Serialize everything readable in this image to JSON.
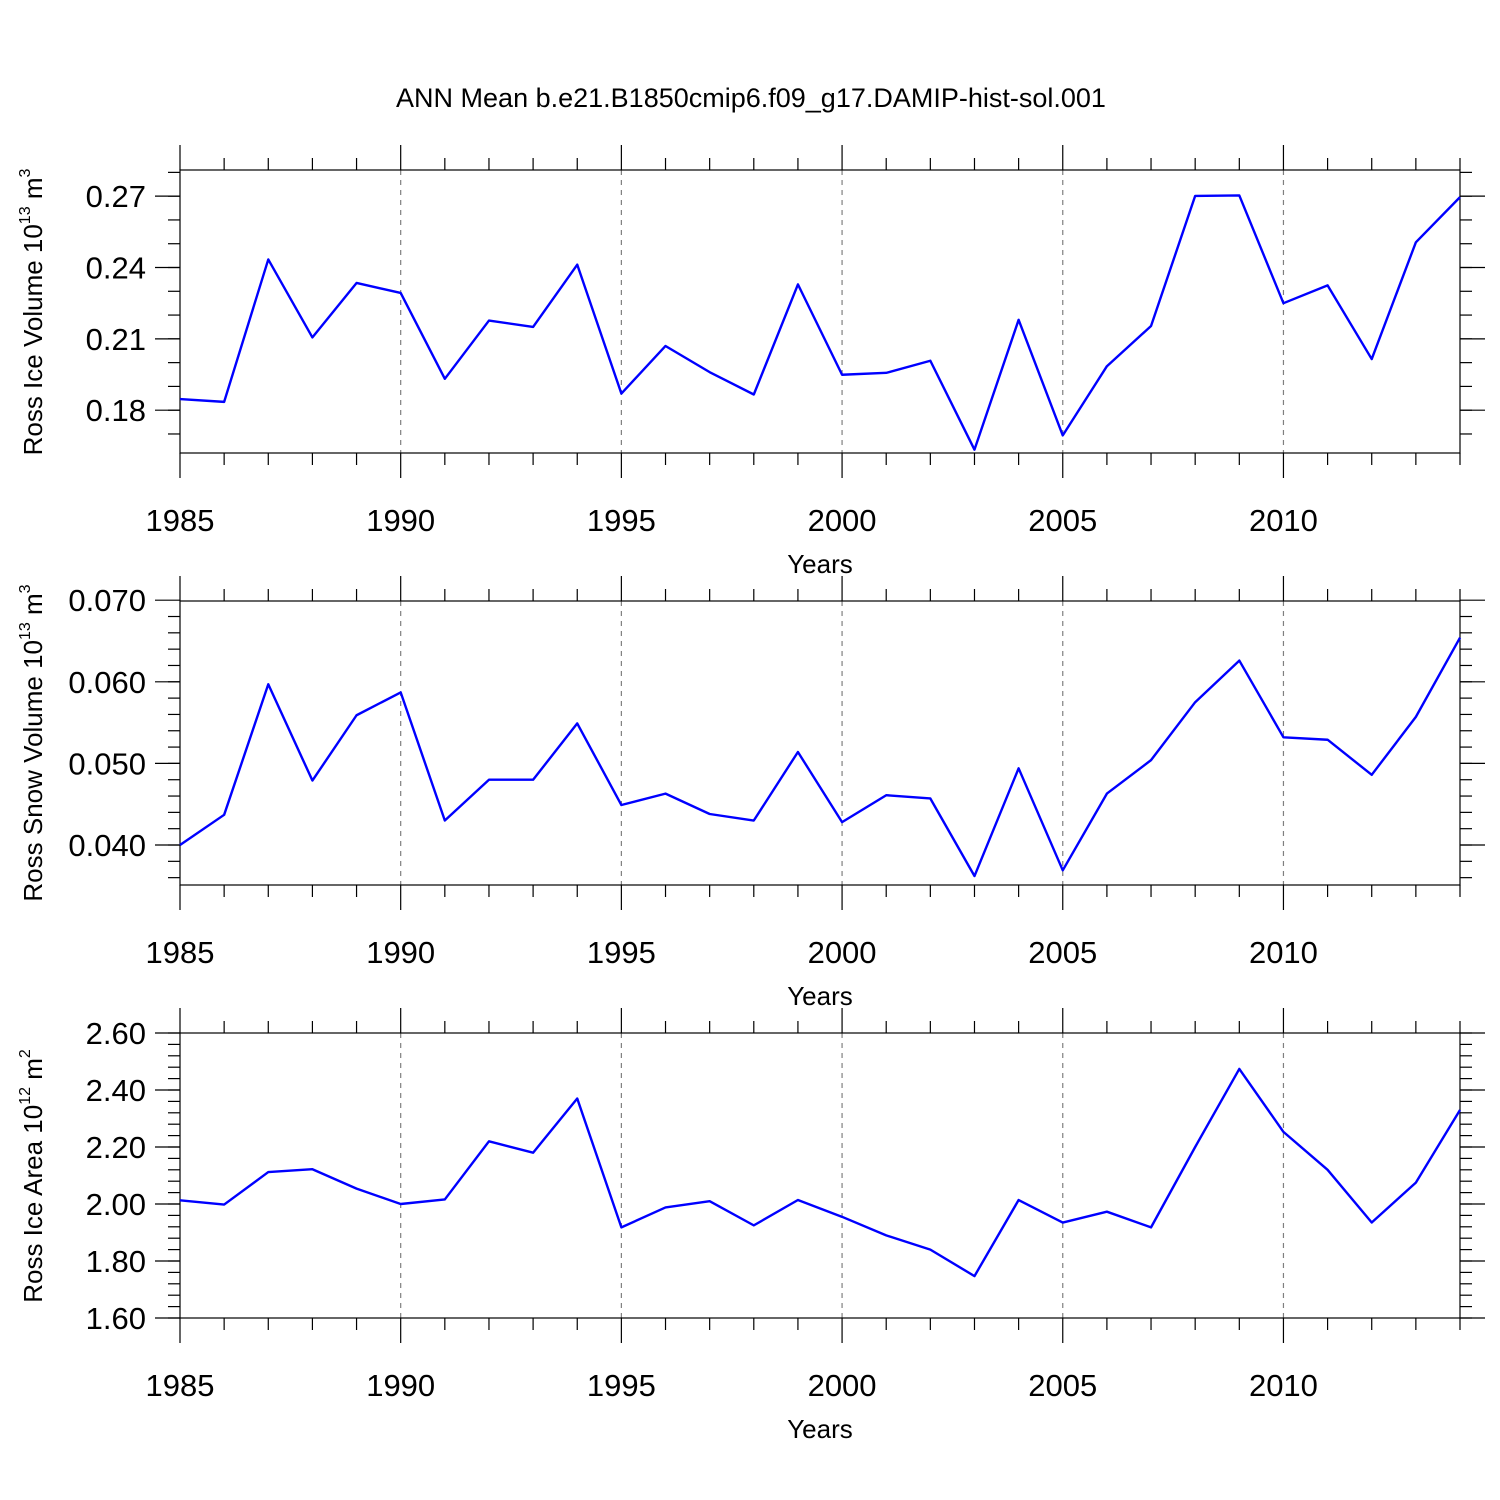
{
  "title": "ANN Mean b.e21.B1850cmip6.f09_g17.DAMIP-hist-sol.001",
  "colors": {
    "line": "#0000ff",
    "axis": "#000000",
    "grid": "#7f7f7f"
  },
  "chart_data": [
    {
      "type": "line",
      "ylabel": "Ross Ice Volume 10",
      "ylabel_exp": "13",
      "ylabel_unit": " m",
      "ylabel_unit_exp": "3",
      "xlabel": "Years",
      "xlim": [
        1985,
        2014
      ],
      "ylim": [
        0.162,
        0.281
      ],
      "yticks": [
        0.18,
        0.21,
        0.24,
        0.27
      ],
      "ytick_labels": [
        "0.18",
        "0.21",
        "0.24",
        "0.27"
      ],
      "yminor_step": 0.01,
      "xticks": [
        1985,
        1990,
        1995,
        2000,
        2005,
        2010
      ],
      "xtick_labels": [
        "1985",
        "1990",
        "1995",
        "2000",
        "2005",
        "2010"
      ],
      "grid_x": [
        1990,
        1995,
        2000,
        2005,
        2010
      ],
      "x": [
        1985,
        1986,
        1987,
        1988,
        1989,
        1990,
        1991,
        1992,
        1993,
        1994,
        1995,
        1996,
        1997,
        1998,
        1999,
        2000,
        2001,
        2002,
        2003,
        2004,
        2005,
        2006,
        2007,
        2008,
        2009,
        2010,
        2011,
        2012,
        2013,
        2014
      ],
      "series": [
        {
          "values": [
            0.1847,
            0.1835,
            0.2434,
            0.2106,
            0.2335,
            0.2293,
            0.1932,
            0.2177,
            0.215,
            0.2412,
            0.187,
            0.207,
            0.196,
            0.1866,
            0.2329,
            0.1949,
            0.1957,
            0.2008,
            0.1634,
            0.218,
            0.1694,
            0.1985,
            0.2154,
            0.2701,
            0.2703,
            0.225,
            0.2325,
            0.2015,
            0.2506,
            0.2696
          ]
        }
      ]
    },
    {
      "type": "line",
      "ylabel": "Ross Snow Volume 10",
      "ylabel_exp": "13",
      "ylabel_unit": " m",
      "ylabel_unit_exp": "3",
      "xlabel": "Years",
      "xlim": [
        1985,
        2014
      ],
      "ylim": [
        0.0351,
        0.0699
      ],
      "yticks": [
        0.04,
        0.05,
        0.06,
        0.07
      ],
      "ytick_labels": [
        "0.040",
        "0.050",
        "0.060",
        "0.070"
      ],
      "yminor_step": 0.002,
      "xticks": [
        1985,
        1990,
        1995,
        2000,
        2005,
        2010
      ],
      "xtick_labels": [
        "1985",
        "1990",
        "1995",
        "2000",
        "2005",
        "2010"
      ],
      "grid_x": [
        1990,
        1995,
        2000,
        2005,
        2010
      ],
      "x": [
        1985,
        1986,
        1987,
        1988,
        1989,
        1990,
        1991,
        1992,
        1993,
        1994,
        1995,
        1996,
        1997,
        1998,
        1999,
        2000,
        2001,
        2002,
        2003,
        2004,
        2005,
        2006,
        2007,
        2008,
        2009,
        2010,
        2011,
        2012,
        2013,
        2014
      ],
      "series": [
        {
          "values": [
            0.04,
            0.0437,
            0.0597,
            0.0479,
            0.0559,
            0.0587,
            0.043,
            0.048,
            0.048,
            0.0549,
            0.0449,
            0.0463,
            0.0438,
            0.043,
            0.0514,
            0.0428,
            0.0461,
            0.0457,
            0.0362,
            0.0494,
            0.0369,
            0.0463,
            0.0504,
            0.0575,
            0.0626,
            0.0532,
            0.0529,
            0.0486,
            0.0557,
            0.0654
          ]
        }
      ]
    },
    {
      "type": "line",
      "ylabel": "Ross Ice Area 10",
      "ylabel_exp": "12",
      "ylabel_unit": " m",
      "ylabel_unit_exp": "2",
      "xlabel": "Years",
      "xlim": [
        1985,
        2014
      ],
      "ylim": [
        1.6,
        2.6
      ],
      "yticks": [
        1.6,
        1.8,
        2.0,
        2.2,
        2.4,
        2.6
      ],
      "ytick_labels": [
        "1.60",
        "1.80",
        "2.00",
        "2.20",
        "2.40",
        "2.60"
      ],
      "yminor_step": 0.04,
      "xticks": [
        1985,
        1990,
        1995,
        2000,
        2005,
        2010
      ],
      "xtick_labels": [
        "1985",
        "1990",
        "1995",
        "2000",
        "2005",
        "2010"
      ],
      "grid_x": [
        1990,
        1995,
        2000,
        2005,
        2010
      ],
      "x": [
        1985,
        1986,
        1987,
        1988,
        1989,
        1990,
        1991,
        1992,
        1993,
        1994,
        1995,
        1996,
        1997,
        1998,
        1999,
        2000,
        2001,
        2002,
        2003,
        2004,
        2005,
        2006,
        2007,
        2008,
        2009,
        2010,
        2011,
        2012,
        2013,
        2014
      ],
      "series": [
        {
          "values": [
            2.013,
            1.998,
            2.112,
            2.122,
            2.054,
            2.0,
            2.016,
            2.22,
            2.18,
            2.37,
            1.918,
            1.988,
            2.01,
            1.925,
            2.014,
            1.955,
            1.89,
            1.84,
            1.747,
            2.014,
            1.935,
            1.973,
            1.918,
            2.2,
            2.474,
            2.253,
            2.12,
            1.935,
            2.075,
            2.33
          ]
        }
      ]
    }
  ]
}
